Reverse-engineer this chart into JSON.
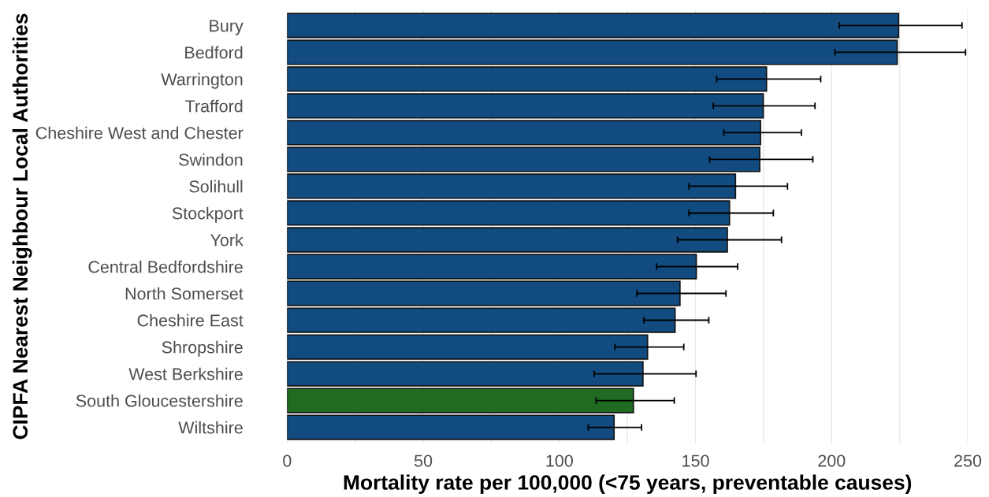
{
  "chart_data": {
    "type": "bar",
    "orientation": "horizontal",
    "xlabel": "Mortality rate per 100,000 (<75 years, preventable causes)",
    "ylabel": "CIPFA Nearest Neighbour Local Authorities",
    "categories": [
      "Bury",
      "Bedford",
      "Warrington",
      "Trafford",
      "Cheshire West and Chester",
      "Swindon",
      "Solihull",
      "Stockport",
      "York",
      "Central Bedfordshire",
      "North Somerset",
      "Cheshire East",
      "Shropshire",
      "West Berkshire",
      "South Gloucestershire",
      "Wiltshire"
    ],
    "values": [
      224.6,
      224.1,
      176.1,
      174.9,
      173.9,
      173.6,
      164.7,
      162.5,
      161.7,
      150.3,
      144.3,
      142.5,
      132.4,
      130.7,
      127.2,
      120.1
    ],
    "errors": [
      [
        202.8,
        247.9
      ],
      [
        201.2,
        249.2
      ],
      [
        157.8,
        196.0
      ],
      [
        156.5,
        193.9
      ],
      [
        160.4,
        188.9
      ],
      [
        155.2,
        193.1
      ],
      [
        147.6,
        183.8
      ],
      [
        147.6,
        178.6
      ],
      [
        143.4,
        181.6
      ],
      [
        135.7,
        165.5
      ],
      [
        128.5,
        161.2
      ],
      [
        131.0,
        154.9
      ],
      [
        120.4,
        145.7
      ],
      [
        112.8,
        150.2
      ],
      [
        113.5,
        142.2
      ],
      [
        110.6,
        130.2
      ]
    ],
    "colors": [
      "#114b7f",
      "#114b7f",
      "#114b7f",
      "#114b7f",
      "#114b7f",
      "#114b7f",
      "#114b7f",
      "#114b7f",
      "#114b7f",
      "#114b7f",
      "#114b7f",
      "#114b7f",
      "#114b7f",
      "#114b7f",
      "#1f6b22",
      "#114b7f"
    ],
    "xlim": [
      0,
      250
    ],
    "xticks": [
      0,
      {
        "value": 25,
        "label": null
      },
      50,
      {
        "value": 75,
        "label": null
      },
      100,
      {
        "value": 125,
        "label": null
      },
      150,
      {
        "value": 175,
        "label": null
      },
      200,
      {
        "value": 225,
        "label": null
      },
      250
    ],
    "grid": "x",
    "legend": false
  }
}
